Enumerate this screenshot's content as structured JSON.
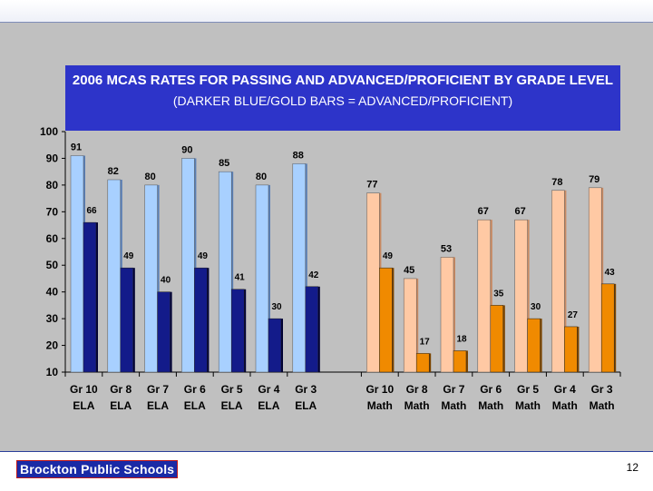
{
  "slide": {
    "logo_text": "Brockton Public Schools",
    "page_number": "12",
    "colors": {
      "background": "#c0c0c0",
      "title_box": "#2d34c9",
      "ela_passing": "#a8d0ff",
      "ela_advanced": "#131b8a",
      "math_passing": "#ffc9a4",
      "math_advanced": "#f08a00"
    }
  },
  "chart_data": {
    "type": "bar",
    "title": "2006 MCAS RATES FOR PASSING AND ADVANCED/PROFICIENT BY GRADE LEVEL",
    "subtitle": "(DARKER BLUE/GOLD BARS = ADVANCED/PROFICIENT)",
    "ylim": [
      10,
      100
    ],
    "yticks": [
      10,
      20,
      30,
      40,
      50,
      60,
      70,
      80,
      90,
      100
    ],
    "grid": false,
    "groups": [
      {
        "name": "ELA",
        "categories": [
          {
            "line1": "Gr 10",
            "line2": "ELA"
          },
          {
            "line1": "Gr 8",
            "line2": "ELA"
          },
          {
            "line1": "Gr 7",
            "line2": "ELA"
          },
          {
            "line1": "Gr 6",
            "line2": "ELA"
          },
          {
            "line1": "Gr 5",
            "line2": "ELA"
          },
          {
            "line1": "Gr 4",
            "line2": "ELA"
          },
          {
            "line1": "Gr 3",
            "line2": "ELA"
          }
        ],
        "passing": [
          91,
          82,
          80,
          90,
          85,
          80,
          88
        ],
        "advanced": [
          66,
          49,
          40,
          49,
          41,
          30,
          42
        ]
      },
      {
        "name": "Math",
        "categories": [
          {
            "line1": "Gr 10",
            "line2": "Math"
          },
          {
            "line1": "Gr 8",
            "line2": "Math"
          },
          {
            "line1": "Gr 7",
            "line2": "Math"
          },
          {
            "line1": "Gr 6",
            "line2": "Math"
          },
          {
            "line1": "Gr 5",
            "line2": "Math"
          },
          {
            "line1": "Gr 4",
            "line2": "Math"
          },
          {
            "line1": "Gr 3",
            "line2": "Math"
          }
        ],
        "passing": [
          77,
          45,
          53,
          67,
          67,
          78,
          79
        ],
        "advanced": [
          49,
          17,
          18,
          35,
          30,
          27,
          43
        ]
      }
    ]
  }
}
